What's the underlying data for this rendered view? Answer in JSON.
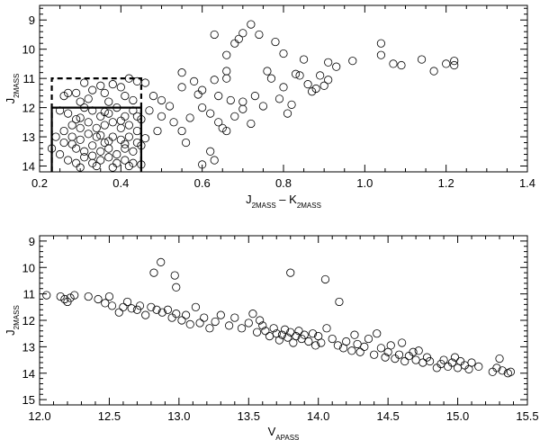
{
  "chart_data": [
    {
      "type": "scatter",
      "xlabel": "J2MASS – K2MASS",
      "xlabel_main": "J",
      "xlabel_sub1": "2MASS",
      "xlabel_mid": " – K",
      "xlabel_sub2": "2MASS",
      "ylabel": "J2MASS",
      "ylabel_main": "J",
      "ylabel_sub": "2MASS",
      "xlim": [
        0.2,
        1.4
      ],
      "ylim": [
        14.2,
        8.5
      ],
      "y_inverted": true,
      "xticks": [
        "0.2",
        "0.4",
        "0.6",
        "0.8",
        "1.0",
        "1.2",
        "1.4"
      ],
      "yticks": [
        "9",
        "10",
        "11",
        "12",
        "13",
        "14"
      ],
      "marker": "open-circle",
      "selection_boxes": [
        {
          "style": "dashed",
          "x": [
            0.23,
            0.45
          ],
          "y": [
            11.0,
            14.2
          ]
        },
        {
          "style": "solid",
          "x": [
            0.23,
            0.45
          ],
          "y": [
            12.0,
            14.2
          ]
        }
      ],
      "points": [
        [
          0.72,
          9.15
        ],
        [
          0.7,
          9.45
        ],
        [
          0.63,
          9.5
        ],
        [
          0.74,
          9.5
        ],
        [
          0.68,
          9.8
        ],
        [
          0.69,
          9.65
        ],
        [
          0.78,
          9.75
        ],
        [
          0.8,
          10.15
        ],
        [
          0.66,
          10.2
        ],
        [
          1.04,
          9.8
        ],
        [
          1.04,
          10.2
        ],
        [
          1.07,
          10.5
        ],
        [
          1.09,
          10.55
        ],
        [
          1.14,
          10.35
        ],
        [
          1.17,
          10.75
        ],
        [
          1.2,
          10.5
        ],
        [
          1.22,
          10.4
        ],
        [
          1.22,
          10.55
        ],
        [
          0.85,
          10.35
        ],
        [
          0.91,
          10.45
        ],
        [
          0.93,
          10.6
        ],
        [
          0.97,
          10.4
        ],
        [
          0.76,
          10.75
        ],
        [
          0.77,
          11.0
        ],
        [
          0.8,
          11.3
        ],
        [
          0.83,
          10.85
        ],
        [
          0.84,
          10.9
        ],
        [
          0.87,
          11.45
        ],
        [
          0.88,
          11.35
        ],
        [
          0.89,
          10.9
        ],
        [
          0.9,
          11.25
        ],
        [
          0.91,
          11.05
        ],
        [
          0.86,
          11.2
        ],
        [
          0.66,
          10.75
        ],
        [
          0.66,
          11.0
        ],
        [
          0.63,
          11.05
        ],
        [
          0.55,
          10.8
        ],
        [
          0.55,
          11.3
        ],
        [
          0.58,
          11.1
        ],
        [
          0.59,
          11.55
        ],
        [
          0.6,
          11.4
        ],
        [
          0.64,
          11.6
        ],
        [
          0.67,
          11.75
        ],
        [
          0.7,
          11.8
        ],
        [
          0.73,
          11.6
        ],
        [
          0.75,
          11.95
        ],
        [
          0.79,
          11.7
        ],
        [
          0.82,
          11.9
        ],
        [
          0.81,
          12.2
        ],
        [
          0.7,
          12.05
        ],
        [
          0.68,
          12.3
        ],
        [
          0.72,
          12.55
        ],
        [
          0.65,
          12.7
        ],
        [
          0.66,
          12.8
        ],
        [
          0.64,
          12.5
        ],
        [
          0.62,
          12.2
        ],
        [
          0.6,
          12.0
        ],
        [
          0.57,
          12.35
        ],
        [
          0.55,
          12.8
        ],
        [
          0.52,
          11.95
        ],
        [
          0.5,
          12.3
        ],
        [
          0.53,
          12.5
        ],
        [
          0.56,
          13.2
        ],
        [
          0.6,
          13.95
        ],
        [
          0.62,
          13.5
        ],
        [
          0.63,
          13.8
        ],
        [
          0.5,
          11.75
        ],
        [
          0.48,
          11.6
        ],
        [
          0.47,
          12.1
        ],
        [
          0.46,
          13.05
        ],
        [
          0.49,
          12.8
        ],
        [
          0.46,
          11.15
        ],
        [
          0.44,
          11.1
        ],
        [
          0.42,
          11.0
        ],
        [
          0.4,
          11.3
        ],
        [
          0.38,
          11.2
        ],
        [
          0.36,
          11.5
        ],
        [
          0.35,
          11.25
        ],
        [
          0.33,
          11.4
        ],
        [
          0.31,
          11.15
        ],
        [
          0.29,
          11.5
        ],
        [
          0.27,
          11.5
        ],
        [
          0.26,
          11.6
        ],
        [
          0.3,
          11.8
        ],
        [
          0.32,
          11.7
        ],
        [
          0.37,
          11.8
        ],
        [
          0.41,
          11.6
        ],
        [
          0.43,
          11.75
        ],
        [
          0.25,
          12.1
        ],
        [
          0.27,
          12.2
        ],
        [
          0.29,
          12.4
        ],
        [
          0.31,
          12.0
        ],
        [
          0.33,
          12.1
        ],
        [
          0.35,
          12.3
        ],
        [
          0.37,
          12.2
        ],
        [
          0.39,
          12.0
        ],
        [
          0.41,
          12.3
        ],
        [
          0.43,
          12.1
        ],
        [
          0.45,
          12.4
        ],
        [
          0.28,
          12.6
        ],
        [
          0.3,
          12.7
        ],
        [
          0.32,
          12.5
        ],
        [
          0.34,
          12.7
        ],
        [
          0.36,
          12.6
        ],
        [
          0.38,
          12.5
        ],
        [
          0.4,
          12.7
        ],
        [
          0.42,
          12.6
        ],
        [
          0.44,
          12.8
        ],
        [
          0.24,
          13.0
        ],
        [
          0.26,
          13.2
        ],
        [
          0.28,
          13.0
        ],
        [
          0.3,
          13.1
        ],
        [
          0.32,
          12.9
        ],
        [
          0.34,
          13.0
        ],
        [
          0.36,
          13.2
        ],
        [
          0.38,
          13.0
        ],
        [
          0.4,
          13.1
        ],
        [
          0.42,
          13.0
        ],
        [
          0.44,
          13.2
        ],
        [
          0.29,
          13.4
        ],
        [
          0.31,
          13.5
        ],
        [
          0.33,
          13.3
        ],
        [
          0.35,
          13.5
        ],
        [
          0.37,
          13.4
        ],
        [
          0.39,
          13.6
        ],
        [
          0.41,
          13.4
        ],
        [
          0.43,
          13.5
        ],
        [
          0.45,
          13.3
        ],
        [
          0.23,
          13.4
        ],
        [
          0.25,
          13.6
        ],
        [
          0.27,
          13.8
        ],
        [
          0.29,
          13.9
        ],
        [
          0.31,
          13.7
        ],
        [
          0.33,
          13.9
        ],
        [
          0.35,
          13.8
        ],
        [
          0.37,
          13.7
        ],
        [
          0.39,
          13.9
        ],
        [
          0.41,
          13.8
        ],
        [
          0.43,
          13.9
        ],
        [
          0.3,
          14.05
        ],
        [
          0.34,
          14.0
        ],
        [
          0.38,
          14.05
        ],
        [
          0.42,
          14.0
        ],
        [
          0.45,
          13.95
        ],
        [
          0.26,
          12.8
        ],
        [
          0.3,
          12.35
        ],
        [
          0.35,
          12.95
        ],
        [
          0.4,
          12.45
        ],
        [
          0.44,
          12.3
        ],
        [
          0.33,
          13.65
        ],
        [
          0.37,
          13.15
        ],
        [
          0.41,
          13.25
        ],
        [
          0.28,
          13.25
        ],
        [
          0.36,
          12.15
        ]
      ]
    },
    {
      "type": "scatter",
      "xlabel": "VAPASS",
      "xlabel_main": "V",
      "xlabel_sub": "APASS",
      "ylabel": "J2MASS",
      "ylabel_main": "J",
      "ylabel_sub": "2MASS",
      "xlim": [
        12.0,
        15.5
      ],
      "ylim": [
        15.2,
        8.8
      ],
      "y_inverted": true,
      "xticks": [
        "12.0",
        "12.5",
        "13.0",
        "13.5",
        "14.0",
        "14.5",
        "15.0",
        "15.5"
      ],
      "yticks": [
        "9",
        "10",
        "11",
        "12",
        "13",
        "14",
        "15"
      ],
      "marker": "open-circle",
      "points": [
        [
          12.05,
          11.05
        ],
        [
          12.15,
          11.1
        ],
        [
          12.18,
          11.2
        ],
        [
          12.2,
          11.3
        ],
        [
          12.22,
          11.15
        ],
        [
          12.25,
          11.05
        ],
        [
          12.35,
          11.1
        ],
        [
          12.42,
          11.2
        ],
        [
          12.47,
          11.35
        ],
        [
          12.5,
          11.1
        ],
        [
          12.52,
          11.45
        ],
        [
          12.57,
          11.7
        ],
        [
          12.6,
          11.5
        ],
        [
          12.63,
          11.3
        ],
        [
          12.66,
          11.55
        ],
        [
          12.7,
          11.6
        ],
        [
          12.72,
          11.45
        ],
        [
          12.76,
          11.8
        ],
        [
          12.8,
          11.5
        ],
        [
          12.84,
          11.6
        ],
        [
          12.88,
          11.7
        ],
        [
          12.82,
          10.2
        ],
        [
          12.87,
          9.8
        ],
        [
          12.97,
          10.3
        ],
        [
          12.98,
          10.75
        ],
        [
          12.92,
          11.6
        ],
        [
          12.95,
          11.9
        ],
        [
          12.98,
          11.75
        ],
        [
          13.02,
          12.0
        ],
        [
          13.05,
          11.8
        ],
        [
          13.08,
          12.15
        ],
        [
          13.12,
          11.5
        ],
        [
          13.15,
          12.1
        ],
        [
          13.18,
          11.9
        ],
        [
          13.22,
          12.3
        ],
        [
          13.26,
          12.05
        ],
        [
          13.3,
          11.8
        ],
        [
          13.36,
          12.2
        ],
        [
          13.4,
          11.9
        ],
        [
          13.45,
          12.3
        ],
        [
          13.5,
          12.1
        ],
        [
          13.53,
          11.75
        ],
        [
          13.56,
          12.45
        ],
        [
          13.58,
          12.0
        ],
        [
          13.6,
          12.2
        ],
        [
          13.62,
          12.4
        ],
        [
          13.65,
          12.6
        ],
        [
          13.68,
          12.3
        ],
        [
          13.7,
          12.5
        ],
        [
          13.72,
          12.75
        ],
        [
          13.74,
          12.55
        ],
        [
          13.76,
          12.35
        ],
        [
          13.78,
          12.65
        ],
        [
          13.8,
          12.45
        ],
        [
          13.82,
          12.85
        ],
        [
          13.84,
          12.6
        ],
        [
          13.86,
          12.4
        ],
        [
          13.88,
          12.7
        ],
        [
          13.9,
          12.55
        ],
        [
          13.93,
          12.8
        ],
        [
          13.96,
          12.5
        ],
        [
          13.98,
          12.95
        ],
        [
          14.0,
          12.6
        ],
        [
          13.8,
          10.2
        ],
        [
          14.05,
          10.45
        ],
        [
          14.15,
          11.3
        ],
        [
          14.02,
          12.85
        ],
        [
          14.06,
          12.3
        ],
        [
          14.1,
          12.7
        ],
        [
          14.14,
          12.95
        ],
        [
          14.18,
          13.05
        ],
        [
          14.2,
          12.8
        ],
        [
          14.24,
          13.15
        ],
        [
          14.26,
          12.55
        ],
        [
          14.28,
          12.9
        ],
        [
          14.3,
          13.2
        ],
        [
          14.33,
          13.0
        ],
        [
          14.36,
          12.7
        ],
        [
          14.4,
          13.3
        ],
        [
          14.42,
          12.5
        ],
        [
          14.45,
          13.05
        ],
        [
          14.48,
          13.4
        ],
        [
          14.5,
          13.2
        ],
        [
          14.52,
          12.95
        ],
        [
          14.55,
          13.45
        ],
        [
          14.58,
          13.3
        ],
        [
          14.6,
          12.85
        ],
        [
          14.62,
          13.55
        ],
        [
          14.65,
          13.35
        ],
        [
          14.68,
          13.2
        ],
        [
          14.7,
          13.5
        ],
        [
          14.72,
          13.15
        ],
        [
          14.75,
          13.6
        ],
        [
          14.78,
          13.4
        ],
        [
          14.8,
          13.55
        ],
        [
          14.85,
          13.8
        ],
        [
          14.88,
          13.65
        ],
        [
          14.9,
          13.5
        ],
        [
          14.93,
          13.75
        ],
        [
          14.96,
          13.6
        ],
        [
          14.98,
          13.4
        ],
        [
          15.0,
          13.8
        ],
        [
          15.02,
          13.55
        ],
        [
          15.05,
          13.7
        ],
        [
          15.08,
          13.85
        ],
        [
          15.1,
          13.6
        ],
        [
          15.15,
          13.75
        ],
        [
          15.25,
          13.95
        ],
        [
          15.28,
          13.8
        ],
        [
          15.3,
          13.45
        ],
        [
          15.32,
          13.9
        ],
        [
          15.36,
          14.0
        ],
        [
          15.38,
          13.95
        ]
      ]
    }
  ]
}
